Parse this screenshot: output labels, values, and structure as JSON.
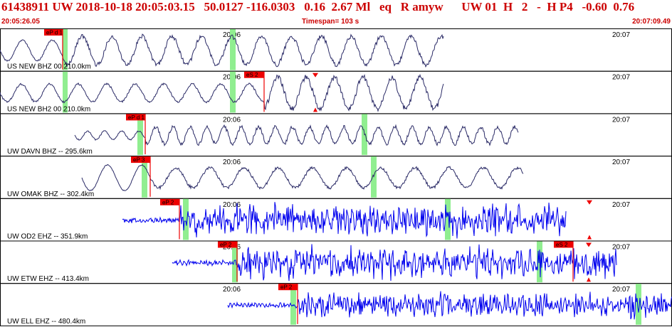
{
  "header": {
    "event_id": "61438911",
    "network": "UW",
    "datetime": "2018-10-18 20:05:03.15",
    "lat": "50.0127",
    "lon": "-116.0303",
    "depth": "0.16",
    "mag": "2.67 Ml",
    "etype": "eq",
    "review": "R",
    "author": "amyw",
    "solution": "UW 01",
    "quality": "H",
    "num": "2",
    "dash": "-",
    "phase_info": "H P4",
    "val1": "-0.60",
    "val2": "0.76"
  },
  "subheader": {
    "start_time": "20:05:26.05",
    "timespan": "Timespan= 103 s",
    "end_time": "20:07:09.49"
  },
  "time_ticks": [
    "20:06",
    "20:07"
  ],
  "colors": {
    "header_red": "#cc0000",
    "trace_dark": "#2a2a66",
    "trace_blue": "#0000ee",
    "pick_red": "#ee0000",
    "window_green": "#90ee90",
    "grid": "#000000"
  },
  "traces": [
    {
      "label": "US NEW BHZ 00 210.0km",
      "color": "dark",
      "picks": [
        {
          "text": "eP d 1"
        }
      ]
    },
    {
      "label": "US NEW BH2 00 210.0km",
      "color": "dark",
      "picks": [
        {
          "text": "eS 2"
        }
      ]
    },
    {
      "label": "UW DAVN BHZ -- 295.6km",
      "color": "dark",
      "picks": [
        {
          "text": "eP d 1"
        }
      ]
    },
    {
      "label": "UW OMAK BHZ -- 302.4km",
      "color": "dark",
      "picks": [
        {
          "text": "eP 3"
        }
      ]
    },
    {
      "label": "UW OD2 EHZ -- 351.9km",
      "color": "blue",
      "picks": [
        {
          "text": "eP 2"
        }
      ]
    },
    {
      "label": "UW ETW EHZ -- 413.4km",
      "color": "blue",
      "picks": [
        {
          "text": "eP 2"
        },
        {
          "text": "eS 2"
        }
      ]
    },
    {
      "label": "UW ELL EHZ -- 480.4km",
      "color": "blue",
      "picks": [
        {
          "text": "eP 2"
        }
      ]
    }
  ]
}
